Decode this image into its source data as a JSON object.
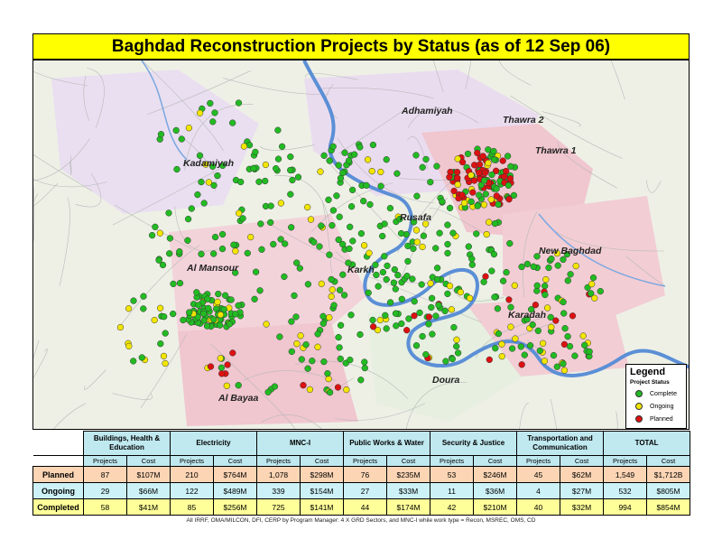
{
  "title": "Baghdad Reconstruction Projects by Status (as of 12 Sep 06)",
  "colors": {
    "title_bg": "#ffff00",
    "complete": "#22bb22",
    "ongoing": "#f2e600",
    "planned": "#dd1111",
    "river": "#5b8fd6",
    "district_pink": "#f0c6cf"
  },
  "districts": [
    "Adhamiyah",
    "Thawra 2",
    "Thawra 1",
    "Kadamiyah",
    "Rusafa",
    "New Baghdad",
    "Al Mansour",
    "Karkh",
    "Karadah",
    "Doura",
    "Al Bayaa"
  ],
  "legend": {
    "title": "Legend",
    "subtitle": "Project Status",
    "items": [
      {
        "label": "Complete",
        "color": "#22bb22"
      },
      {
        "label": "Ongoing",
        "color": "#f2e600"
      },
      {
        "label": "Planned",
        "color": "#dd1111"
      }
    ]
  },
  "table": {
    "categories": [
      "Buildings, Health & Education",
      "Electricity",
      "MNC-I",
      "Public Works & Water",
      "Security & Justice",
      "Transportation and Communication",
      "TOTAL"
    ],
    "sub_headers": [
      "Projects",
      "Cost"
    ],
    "rows": [
      {
        "status": "Planned",
        "values": [
          "87",
          "$107M",
          "210",
          "$764M",
          "1,078",
          "$298M",
          "76",
          "$235M",
          "53",
          "$246M",
          "45",
          "$62M",
          "1,549",
          "$1,712B"
        ]
      },
      {
        "status": "Ongoing",
        "values": [
          "29",
          "$66M",
          "122",
          "$489M",
          "339",
          "$154M",
          "27",
          "$33M",
          "11",
          "$36M",
          "4",
          "$27M",
          "532",
          "$805M"
        ]
      },
      {
        "status": "Completed",
        "values": [
          "58",
          "$41M",
          "85",
          "$256M",
          "725",
          "$141M",
          "44",
          "$174M",
          "42",
          "$210M",
          "40",
          "$32M",
          "994",
          "$854M"
        ]
      }
    ]
  },
  "footnote": "All IRRF, OMA/MILCON, DFI, CERP by Program Manager: 4 X GRD Sectors, and MNC-I while work type = Recon, MSREC, OMS, CD"
}
